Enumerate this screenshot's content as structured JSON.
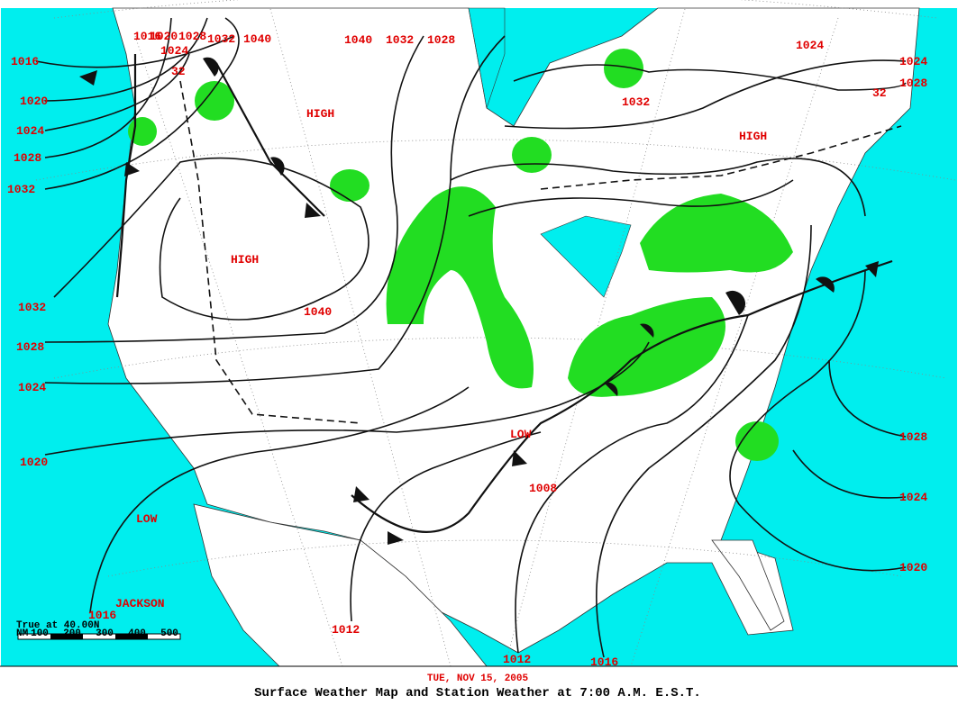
{
  "isobar_labels": [
    "1016",
    "1020",
    "1024",
    "1028",
    "1032",
    "1040",
    "32",
    "1016",
    "1020",
    "1024",
    "1028",
    "1032",
    "1040",
    "1032",
    "1028",
    "1024",
    "1024",
    "1028",
    "32",
    "1032",
    "1040",
    "1032",
    "1028",
    "1024",
    "1020",
    "1016",
    "1012",
    "1012",
    "1016",
    "1008",
    "1028",
    "1024",
    "1020"
  ],
  "pressure_centers": [
    "HIGH",
    "HIGH",
    "HIGH",
    "LOW",
    "LOW"
  ],
  "place": "JACKSON",
  "scale": {
    "title": "True at 40.00N",
    "unit": "NM",
    "marks": [
      "100",
      "200",
      "300",
      "400",
      "500"
    ]
  },
  "footer": {
    "date": "TUE, NOV 15, 2005",
    "title": "Surface Weather Map and Station Weather at 7:00 A.M. E.S.T."
  }
}
